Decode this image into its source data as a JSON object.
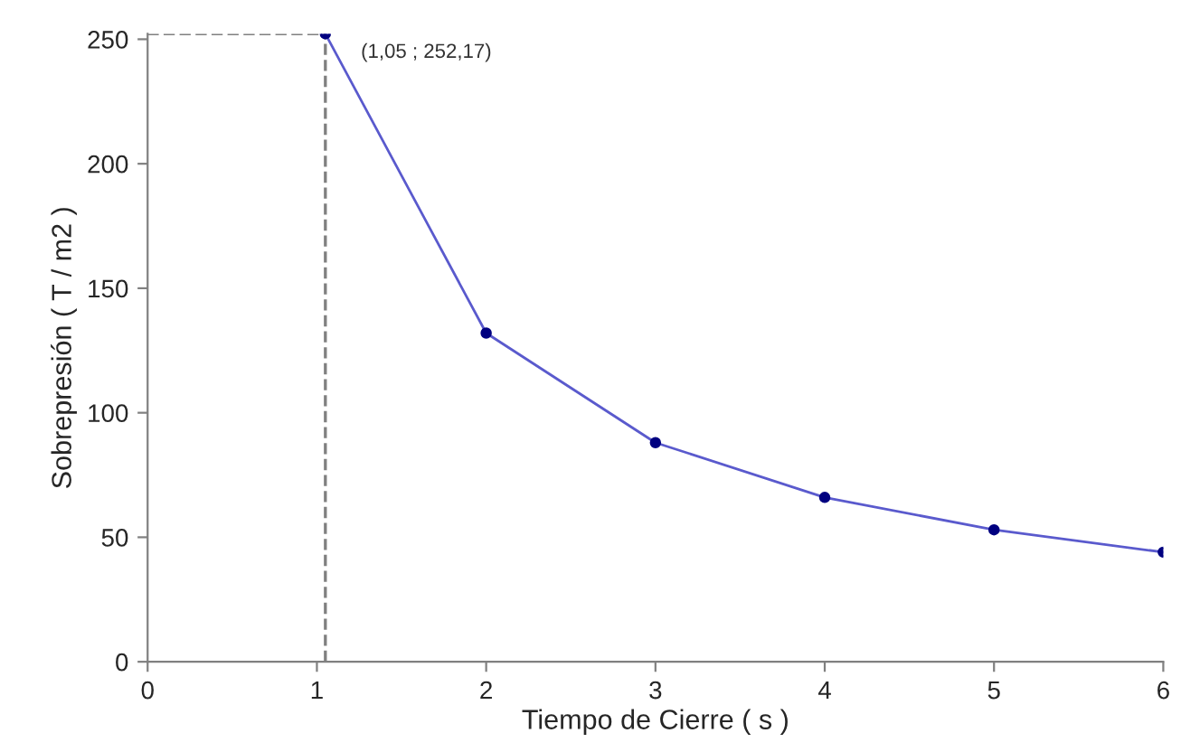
{
  "chart_data": {
    "type": "line",
    "xlabel": "Tiempo de Cierre ( s )",
    "ylabel": "Sobrepresión ( T / m2 )",
    "x": [
      1.05,
      2,
      3,
      4,
      5,
      6
    ],
    "series": [
      {
        "color": "#5a5acd",
        "values": [
          252.17,
          132,
          88,
          66,
          53,
          44
        ]
      }
    ],
    "marker": "circle",
    "xlim": [
      0,
      6
    ],
    "ylim": [
      0,
      252.17
    ],
    "xticks": [
      0,
      1,
      2,
      3,
      4,
      5,
      6
    ],
    "yticks": [
      0,
      50,
      100,
      150,
      200,
      250
    ],
    "ref_lines": [
      {
        "axis": "x",
        "value": 1.05,
        "color": "#808080",
        "line_style": "dashed"
      },
      {
        "axis": "y",
        "value": 252.17,
        "color": "#808080",
        "line_style": "dashed"
      }
    ],
    "annotations": [
      "(1,05 ; 252,17)"
    ],
    "grid": false,
    "legend": false
  }
}
